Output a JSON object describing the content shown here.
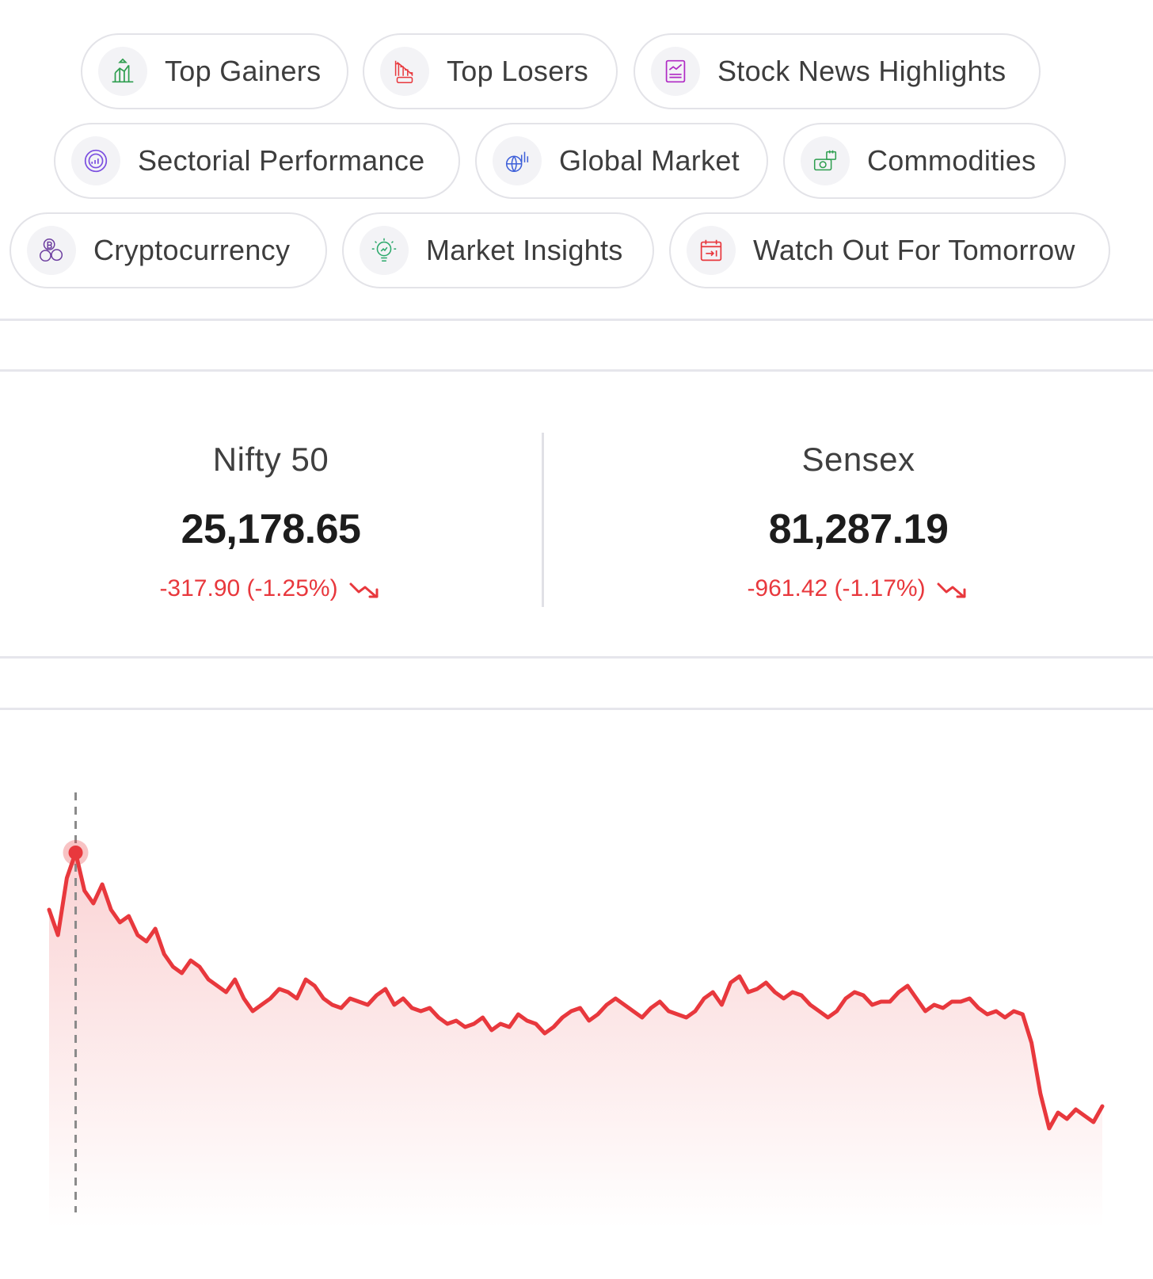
{
  "chips": [
    {
      "label": "Top Gainers",
      "icon": "top-gainers-icon",
      "color": "#2e9e4f"
    },
    {
      "label": "Top Losers",
      "icon": "top-losers-icon",
      "color": "#e8383d"
    },
    {
      "label": "Stock News Highlights",
      "icon": "stock-news-icon",
      "color": "#b02ac4"
    },
    {
      "label": "Sectorial Performance",
      "icon": "sectorial-performance-icon",
      "color": "#7b4fe0"
    },
    {
      "label": "Global Market",
      "icon": "global-market-icon",
      "color": "#3d5fd9"
    },
    {
      "label": "Commodities",
      "icon": "commodities-icon",
      "color": "#2e9e4f"
    },
    {
      "label": "Cryptocurrency",
      "icon": "cryptocurrency-icon",
      "color": "#6d3fa0"
    },
    {
      "label": "Market Insights",
      "icon": "market-insights-icon",
      "color": "#2aa86a"
    },
    {
      "label": "Watch Out For Tomorrow",
      "icon": "calendar-icon",
      "color": "#e8383d"
    }
  ],
  "indices": [
    {
      "name": "Nifty 50",
      "value": "25,178.65",
      "change": "-317.90 (-1.25%)",
      "trend": "down"
    },
    {
      "name": "Sensex",
      "value": "81,287.19",
      "change": "-961.42 (-1.17%)",
      "trend": "down"
    }
  ],
  "colors": {
    "negative": "#e8383d",
    "border": "#e3e3e8",
    "icon_bg": "#f3f3f6"
  },
  "chart_data": {
    "type": "area",
    "series": [
      {
        "values": [
          78,
          70,
          88,
          96,
          84,
          80,
          86,
          78,
          74,
          76,
          70,
          68,
          72,
          64,
          60,
          58,
          62,
          60,
          56,
          54,
          52,
          56,
          50,
          46,
          48,
          50,
          53,
          52,
          50,
          56,
          54,
          50,
          48,
          47,
          50,
          49,
          48,
          51,
          53,
          48,
          50,
          47,
          46,
          47,
          44,
          42,
          43,
          41,
          42,
          44,
          40,
          42,
          41,
          45,
          43,
          42,
          39,
          41,
          44,
          46,
          47,
          43,
          45,
          48,
          50,
          48,
          46,
          44,
          47,
          49,
          46,
          45,
          44,
          46,
          50,
          52,
          48,
          55,
          57,
          52,
          53,
          55,
          52,
          50,
          52,
          51,
          48,
          46,
          44,
          46,
          50,
          52,
          51,
          48,
          49,
          49,
          52,
          54,
          50,
          46,
          48,
          47,
          49,
          49,
          50,
          47,
          45,
          46,
          44,
          46,
          45,
          36,
          20,
          9,
          14,
          12,
          15,
          13,
          11,
          16
        ]
      }
    ],
    "highlight_index": 3,
    "grid": false
  }
}
